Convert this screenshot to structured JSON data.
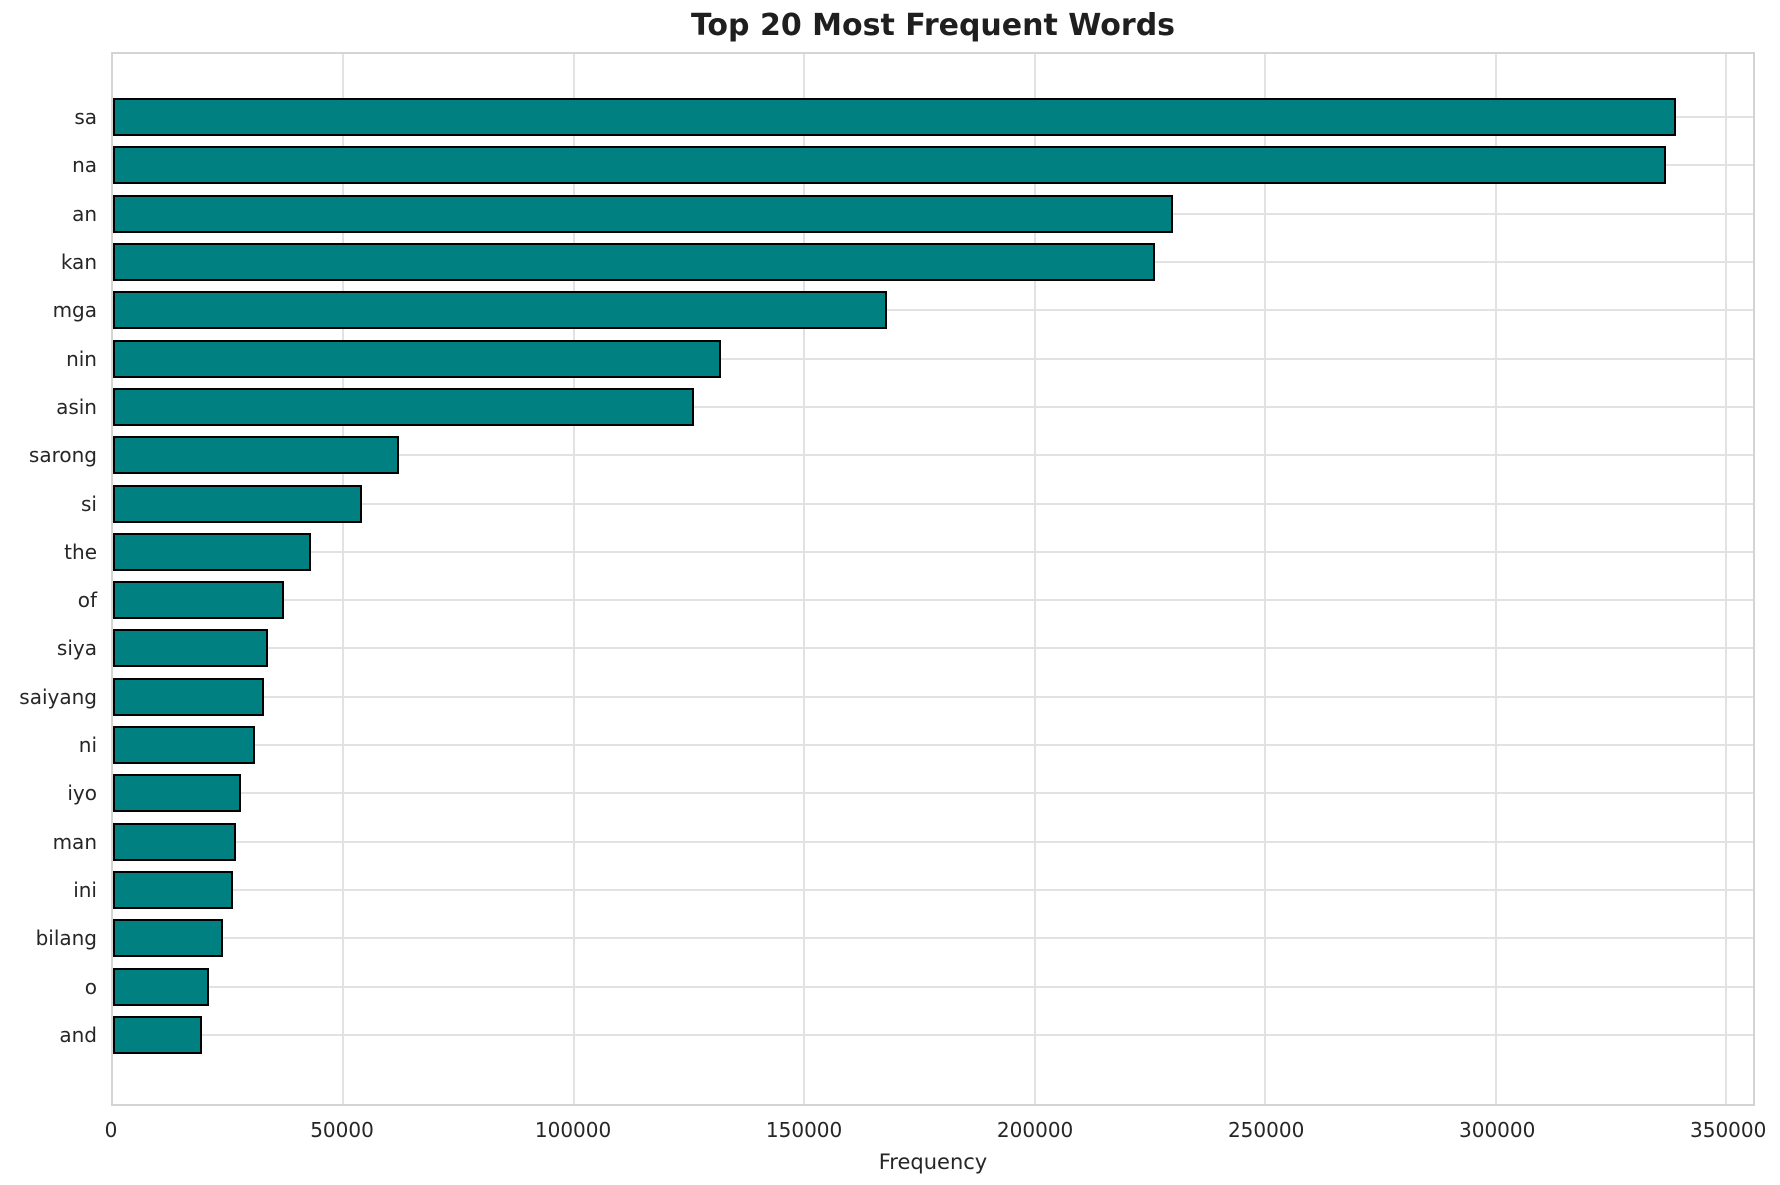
{
  "title": "Top 20 Most Frequent Words",
  "colors": {
    "bar_fill": "#008080",
    "bar_edge": "#000000",
    "gridline": "#e2e2e2",
    "spine": "#d4d4d4",
    "text": "#262626",
    "background": "#ffffff"
  },
  "chart_data": {
    "type": "bar",
    "orientation": "horizontal",
    "title": "Top 20 Most Frequent Words",
    "xlabel": "Frequency",
    "ylabel": "",
    "grid": true,
    "legend": null,
    "categories": [
      "sa",
      "na",
      "an",
      "kan",
      "mga",
      "nin",
      "asin",
      "sarong",
      "si",
      "the",
      "of",
      "siya",
      "saiyang",
      "ni",
      "iyo",
      "man",
      "ini",
      "bilang",
      "o",
      "and"
    ],
    "values": [
      339000,
      337000,
      230000,
      226000,
      168000,
      132000,
      126000,
      62000,
      54000,
      43000,
      37000,
      33700,
      32700,
      30800,
      27800,
      26700,
      26000,
      23900,
      20800,
      19300
    ],
    "xlim": [
      0,
      355800
    ],
    "xticks": [
      0,
      50000,
      100000,
      150000,
      200000,
      250000,
      300000,
      350000
    ],
    "xtick_labels": [
      "0",
      "50000",
      "100000",
      "150000",
      "200000",
      "250000",
      "300000",
      "350000"
    ]
  }
}
